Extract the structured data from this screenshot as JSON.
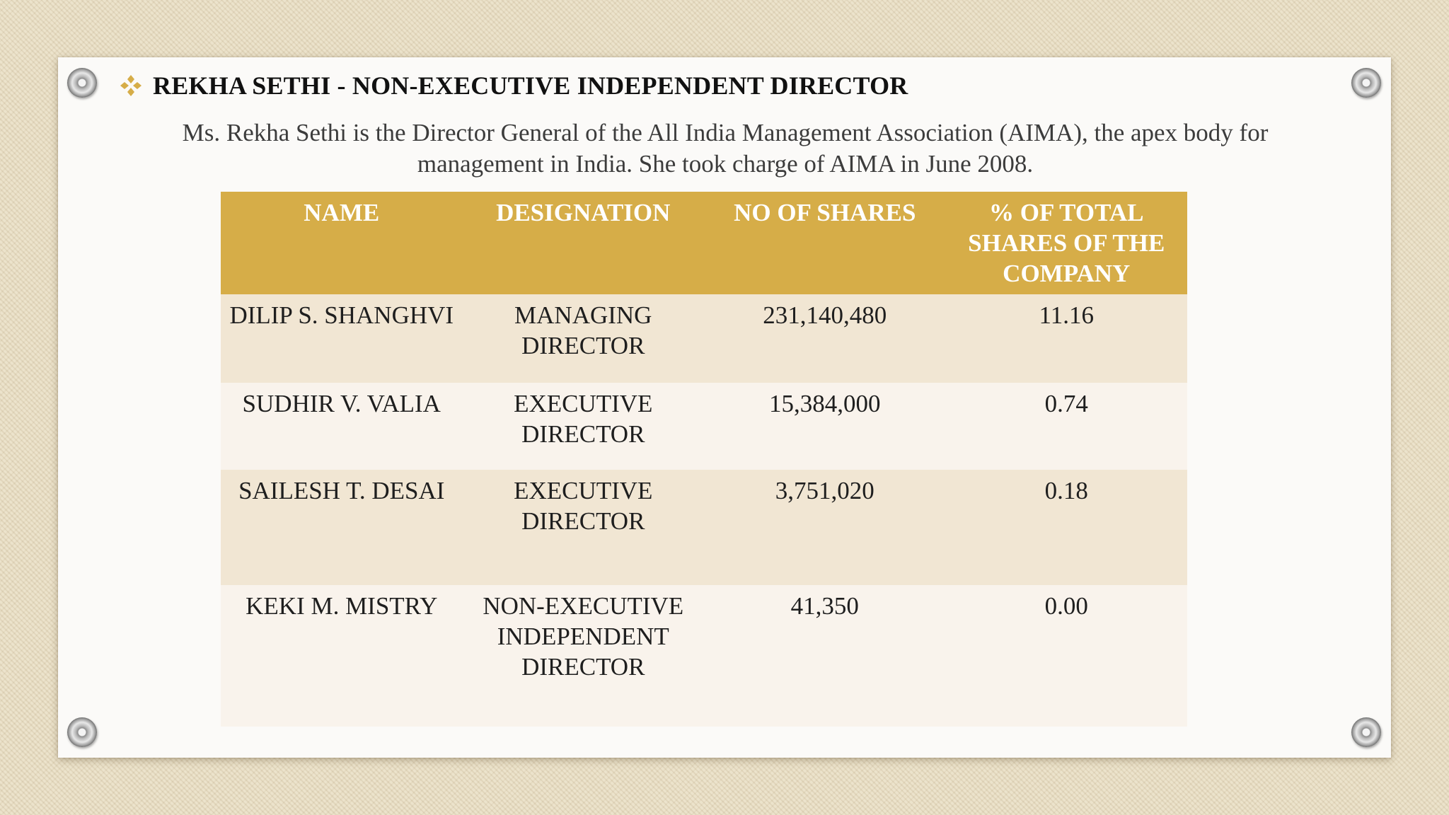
{
  "slide": {
    "title": "REKHA SETHI - NON-EXECUTIVE INDEPENDENT DIRECTOR",
    "description": "Ms. Rekha Sethi is the Director General of the All India Management Association (AIMA), the apex body for management in India. She took charge of AIMA in June 2008.",
    "bullet_icon": "diamond-cluster-bullet",
    "accent_color": "#d6ad48"
  },
  "table": {
    "headers": [
      "NAME",
      "DESIGNATION",
      "NO OF SHARES",
      "% OF TOTAL SHARES OF THE COMPANY"
    ],
    "rows": [
      [
        "DILIP S. SHANGHVI",
        "MANAGING DIRECTOR",
        "231,140,480",
        "11.16"
      ],
      [
        "SUDHIR V. VALIA",
        "EXECUTIVE DIRECTOR",
        "15,384,000",
        "0.74"
      ],
      [
        "SAILESH T. DESAI",
        "EXECUTIVE DIRECTOR",
        "3,751,020",
        "0.18"
      ],
      [
        "KEKI M. MISTRY",
        "NON-EXECUTIVE INDEPENDENT DIRECTOR",
        "41,350",
        "0.00"
      ]
    ]
  }
}
